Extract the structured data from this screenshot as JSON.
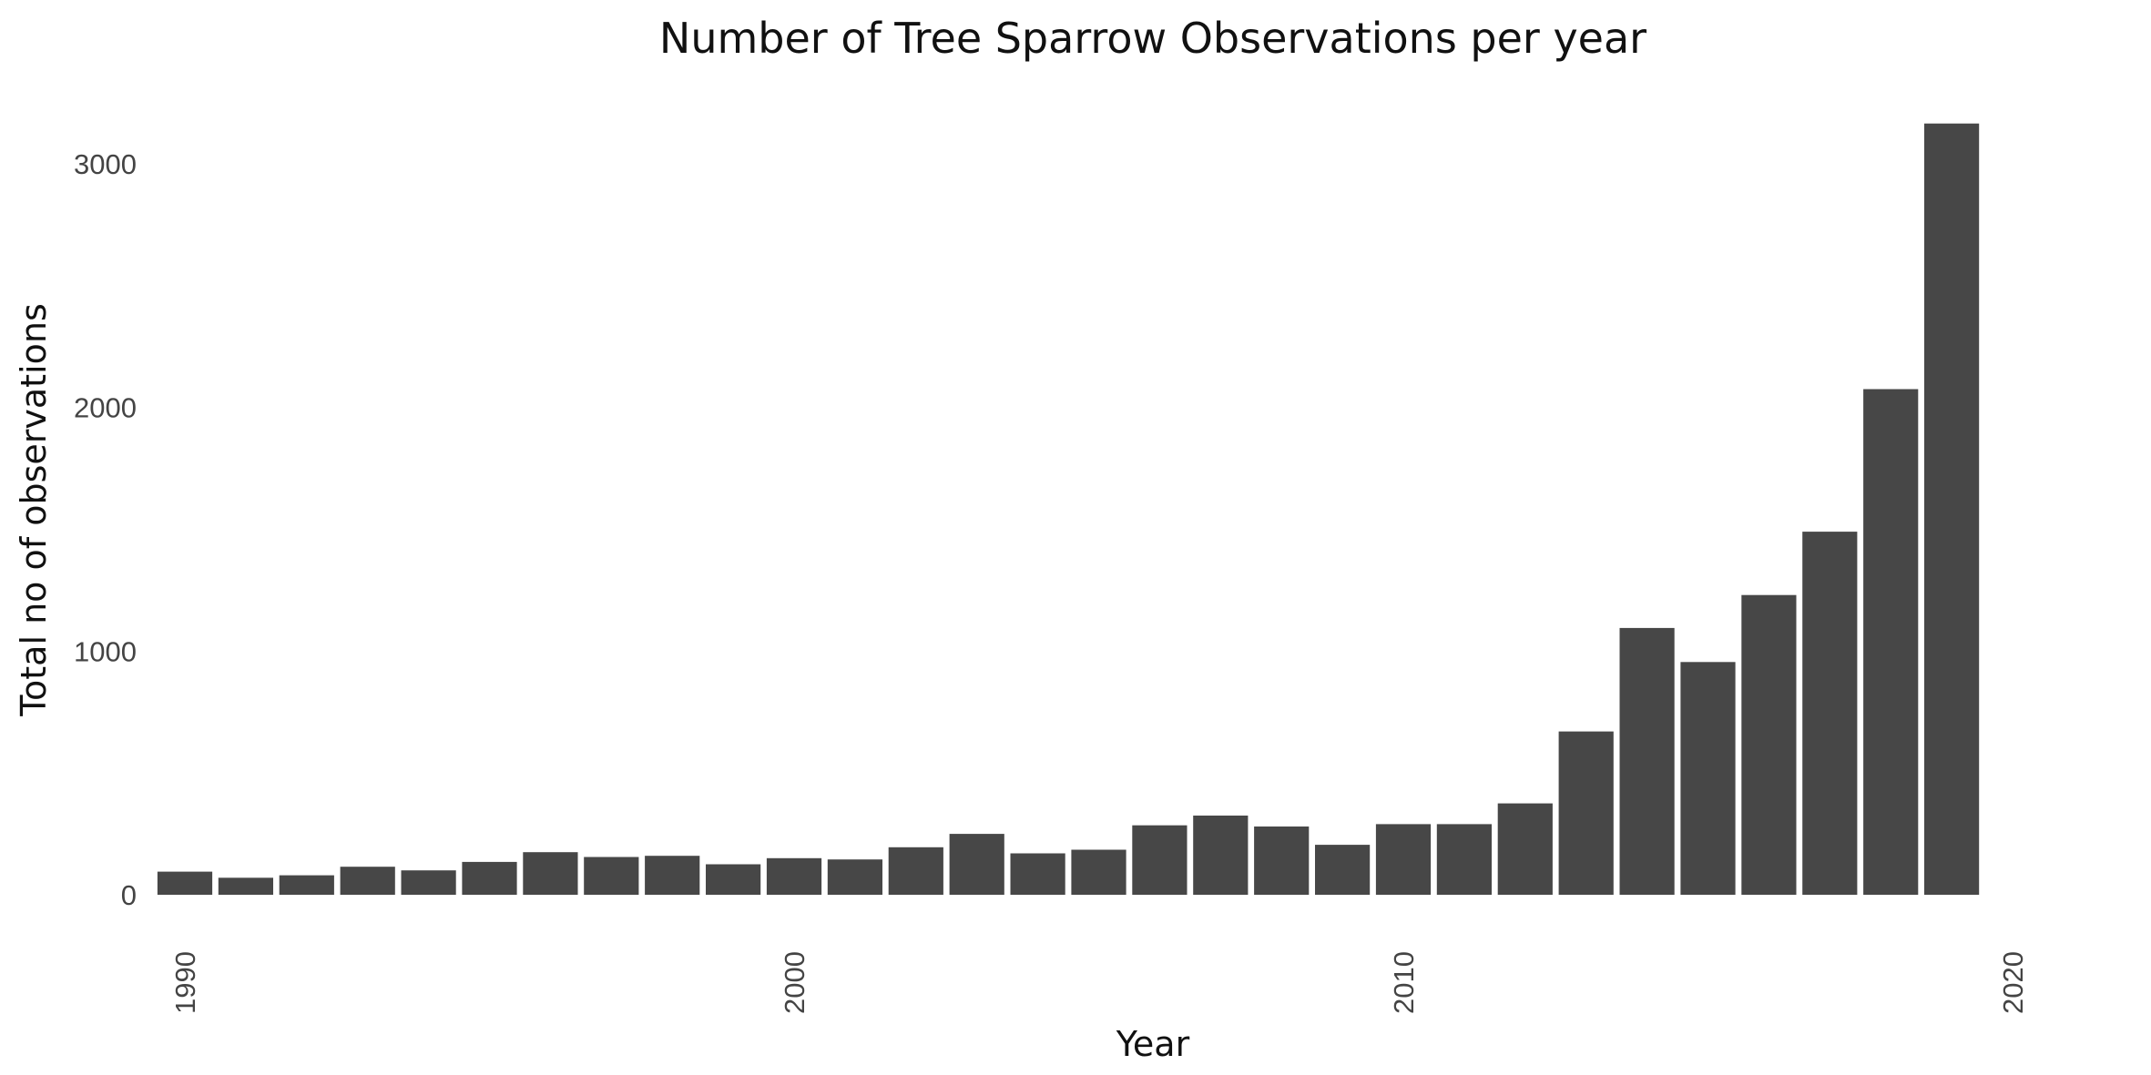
{
  "chart_data": {
    "type": "bar",
    "title": "Number of Tree Sparrow Observations per year",
    "xlabel": "Year",
    "ylabel": "Total no of observations",
    "x": [
      1990,
      1991,
      1992,
      1993,
      1994,
      1995,
      1996,
      1997,
      1998,
      1999,
      2000,
      2001,
      2002,
      2003,
      2004,
      2005,
      2006,
      2007,
      2008,
      2009,
      2010,
      2011,
      2012,
      2013,
      2014,
      2015,
      2016,
      2017,
      2018,
      2019
    ],
    "values": [
      95,
      70,
      80,
      115,
      100,
      135,
      175,
      155,
      160,
      125,
      150,
      145,
      195,
      250,
      170,
      185,
      285,
      325,
      280,
      205,
      290,
      290,
      375,
      670,
      1095,
      955,
      1230,
      1490,
      2075,
      3165
    ],
    "xlim": [
      1989,
      2020
    ],
    "ylim": [
      0,
      3200
    ],
    "x_ticks": [
      1990,
      2000,
      2010,
      2020
    ],
    "y_ticks": [
      0,
      1000,
      2000,
      3000
    ],
    "grid": false,
    "bar_color": "#474747"
  }
}
